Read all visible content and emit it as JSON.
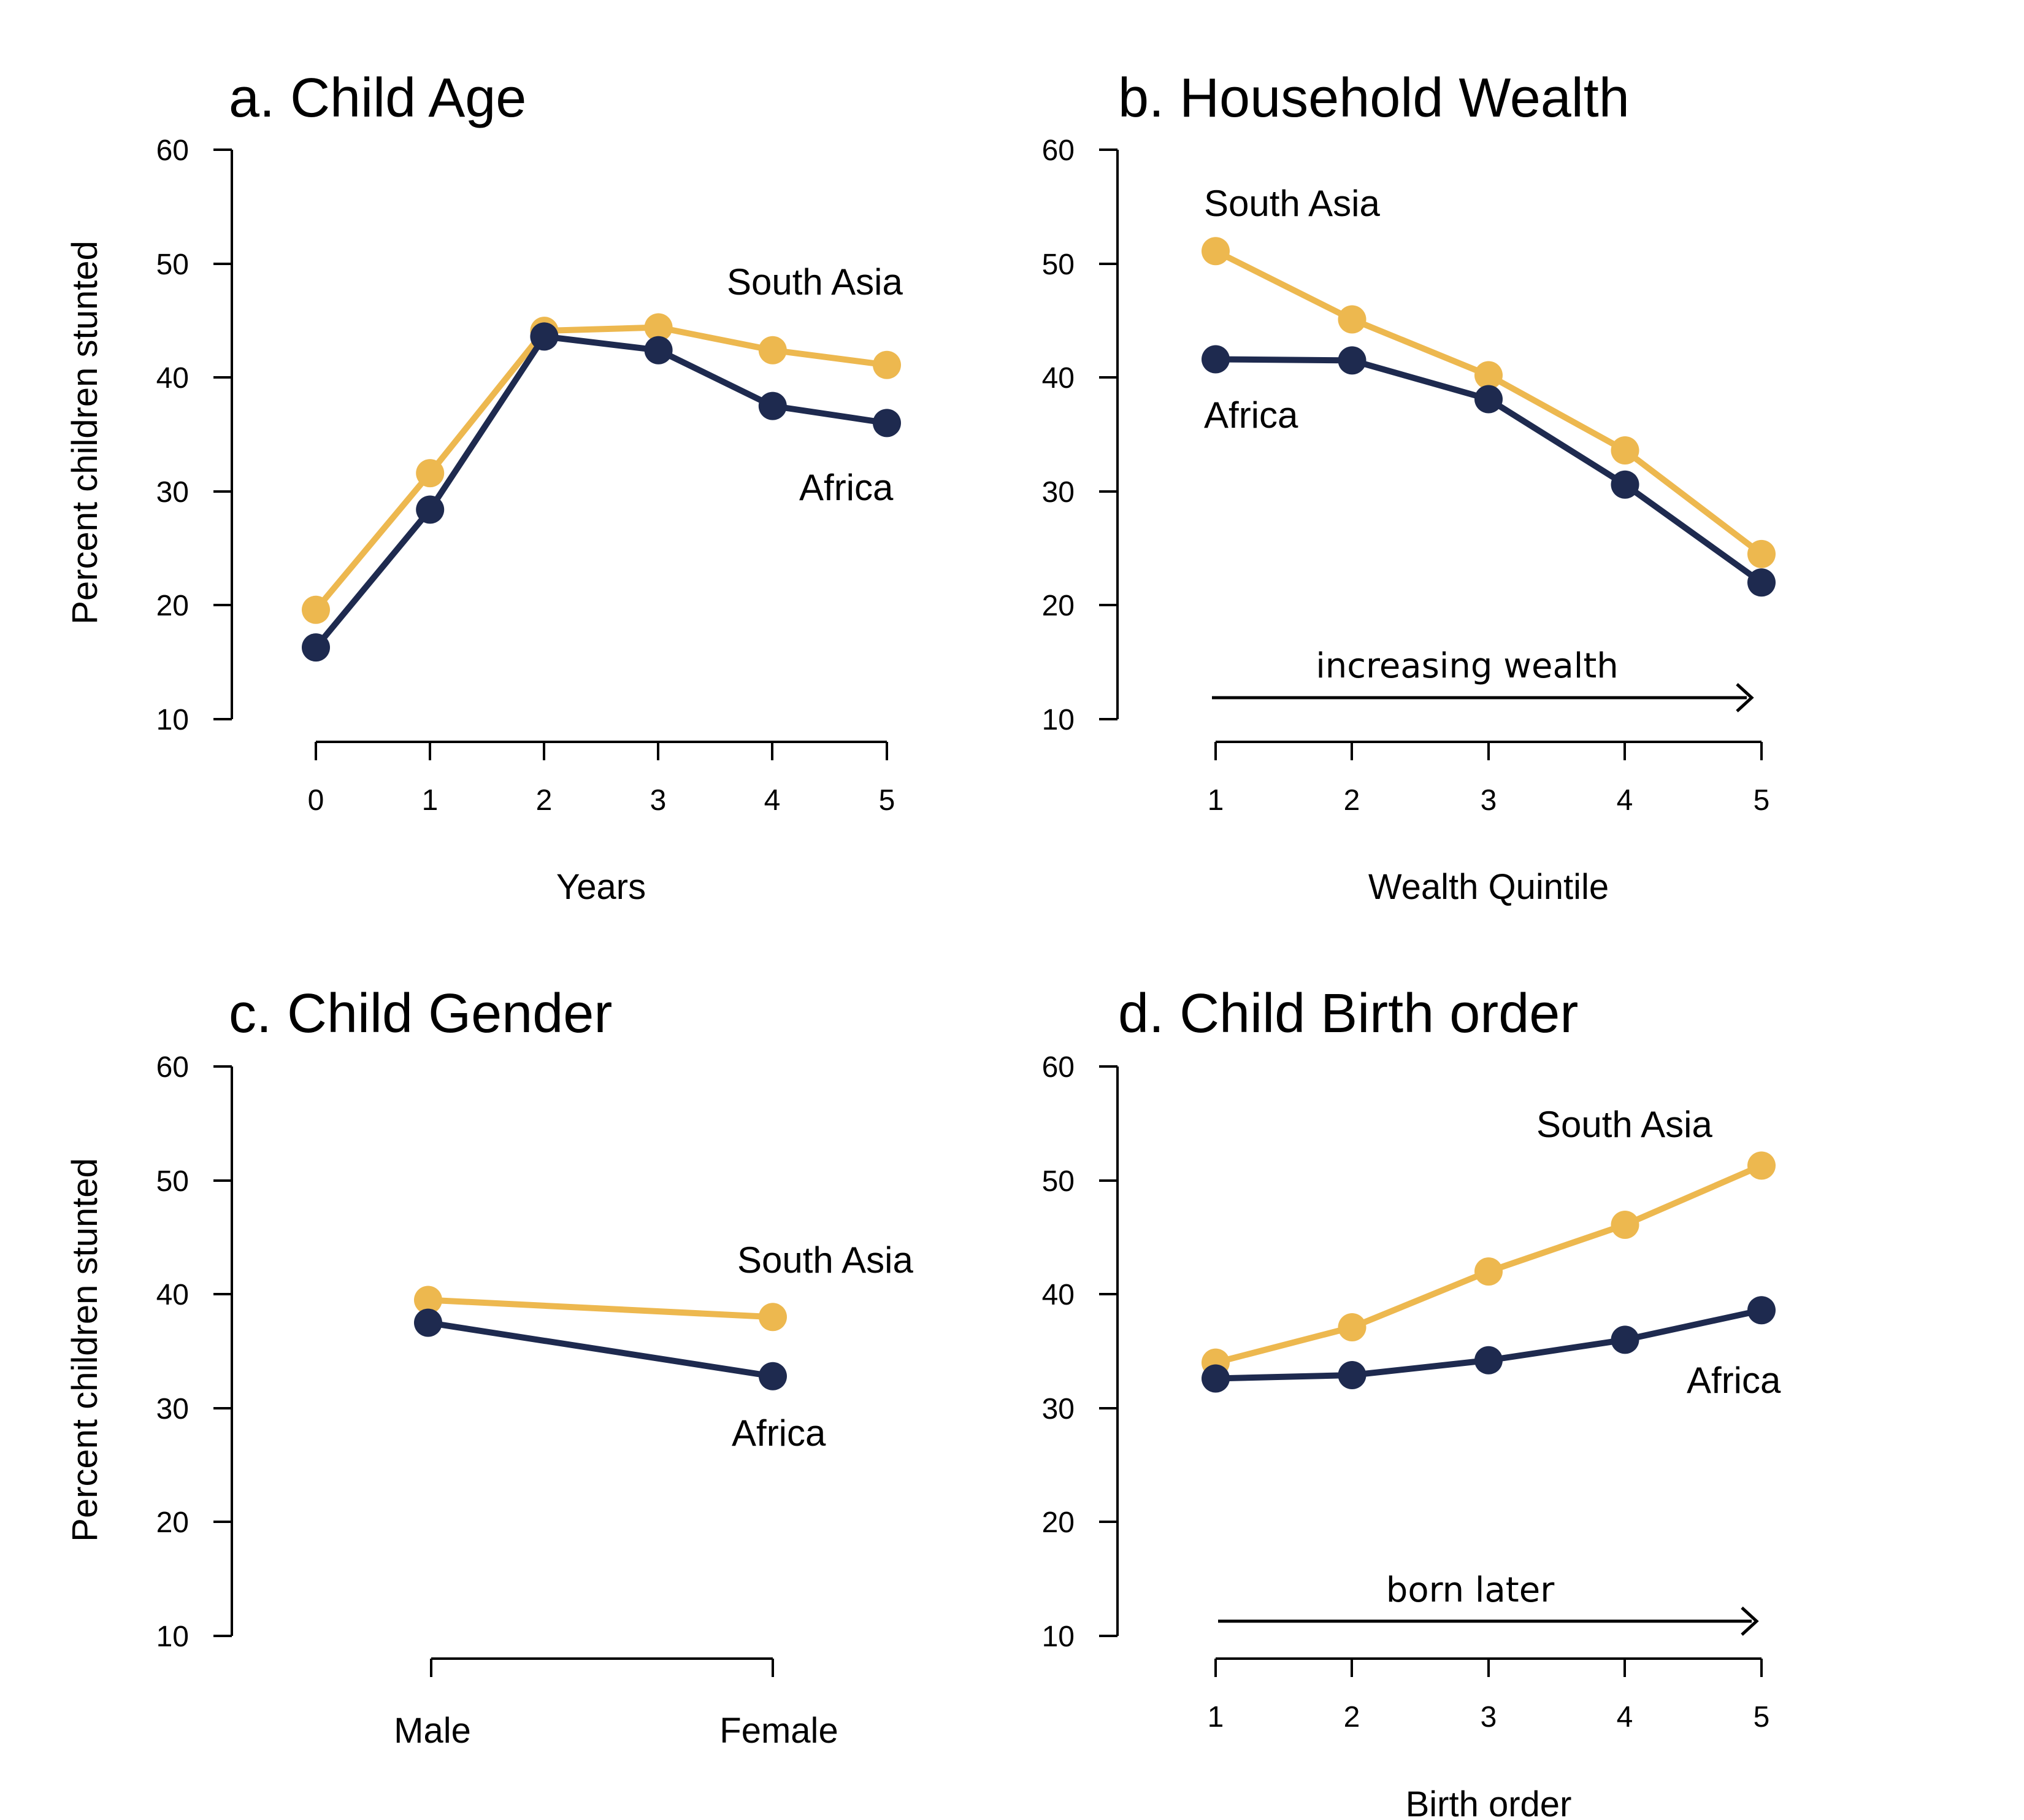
{
  "colors": {
    "south_asia": "#EDB84F",
    "africa": "#1E2A4F"
  },
  "chart_data": [
    {
      "type": "line",
      "title": "a. Child Age",
      "xlabel": "Years",
      "ylabel": "Percent children stunted",
      "ylim": [
        10,
        60
      ],
      "yticks": [
        "10",
        "20",
        "30",
        "40",
        "50",
        "60"
      ],
      "categories": [
        "0",
        "1",
        "2",
        "3",
        "4",
        "5"
      ],
      "series": [
        {
          "name": "South Asia",
          "color": "#EDB84F",
          "values": [
            19.6,
            31.6,
            44.1,
            44.4,
            42.4,
            41.1
          ]
        },
        {
          "name": "Africa",
          "color": "#1E2A4F",
          "values": [
            16.3,
            28.4,
            43.6,
            42.4,
            37.5,
            36.0
          ]
        }
      ]
    },
    {
      "type": "line",
      "title": "b. Household Wealth",
      "xlabel": "Wealth Quintile",
      "ylabel": "",
      "ylim": [
        10,
        60
      ],
      "yticks": [
        "10",
        "20",
        "30",
        "40",
        "50",
        "60"
      ],
      "categories": [
        "1",
        "2",
        "3",
        "4",
        "5"
      ],
      "annotation": "increasing wealth",
      "series": [
        {
          "name": "South Asia",
          "color": "#EDB84F",
          "values": [
            51.1,
            45.1,
            40.2,
            33.6,
            24.5
          ]
        },
        {
          "name": "Africa",
          "color": "#1E2A4F",
          "values": [
            41.6,
            41.5,
            38.1,
            30.6,
            22.0
          ]
        }
      ]
    },
    {
      "type": "line",
      "title": "c. Child Gender",
      "xlabel": "",
      "ylabel": "Percent children stunted",
      "ylim": [
        10,
        60
      ],
      "yticks": [
        "10",
        "20",
        "30",
        "40",
        "50",
        "60"
      ],
      "categories": [
        "Male",
        "Female"
      ],
      "series": [
        {
          "name": "South Asia",
          "color": "#EDB84F",
          "values": [
            39.5,
            38.0
          ]
        },
        {
          "name": "Africa",
          "color": "#1E2A4F",
          "values": [
            37.5,
            32.8
          ]
        }
      ]
    },
    {
      "type": "line",
      "title": "d. Child Birth order",
      "xlabel": "Birth order",
      "ylabel": "",
      "ylim": [
        10,
        60
      ],
      "yticks": [
        "10",
        "20",
        "30",
        "40",
        "50",
        "60"
      ],
      "categories": [
        "1",
        "2",
        "3",
        "4",
        "5"
      ],
      "annotation": "born later",
      "series": [
        {
          "name": "South Asia",
          "color": "#EDB84F",
          "values": [
            34.0,
            37.1,
            42.0,
            46.1,
            51.3
          ]
        },
        {
          "name": "Africa",
          "color": "#1E2A4F",
          "values": [
            32.6,
            32.9,
            34.2,
            36.0,
            38.6
          ]
        }
      ]
    }
  ]
}
